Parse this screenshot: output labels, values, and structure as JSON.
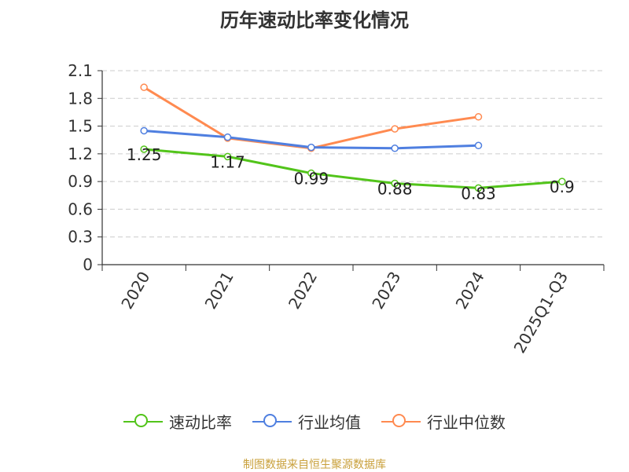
{
  "title": "历年速动比率变化情况",
  "source": "制图数据来自恒生聚源数据库",
  "colors": {
    "series": [
      "#52c41a",
      "#4f7fe0",
      "#ff8a50"
    ],
    "grid": "#cccccc",
    "axis": "#333333",
    "source": "#c9a03b"
  },
  "chart_data": {
    "type": "line",
    "title": "历年速动比率变化情况",
    "xlabel": "",
    "ylabel": "",
    "ylim": [
      0,
      2.1
    ],
    "yticks": [
      0,
      0.3,
      0.6,
      0.9,
      1.2,
      1.5,
      1.8,
      2.1
    ],
    "ytick_labels": [
      "0",
      "0.3",
      "0.6",
      "0.9",
      "1.2",
      "1.5",
      "1.8",
      "2.1"
    ],
    "grid": true,
    "legend_position": "bottom",
    "categories": [
      "2020",
      "2021",
      "2022",
      "2023",
      "2024",
      "2025Q1-Q3"
    ],
    "series": [
      {
        "name": "速动比率",
        "values": [
          1.25,
          1.17,
          0.99,
          0.88,
          0.83,
          0.9
        ],
        "labels": [
          "1.25",
          "1.17",
          "0.99",
          "0.88",
          "0.83",
          "0.9"
        ]
      },
      {
        "name": "行业均值",
        "values": [
          1.45,
          1.38,
          1.27,
          1.26,
          1.29,
          null
        ]
      },
      {
        "name": "行业中位数",
        "values": [
          1.92,
          1.37,
          1.26,
          1.47,
          1.6,
          null
        ]
      }
    ]
  }
}
